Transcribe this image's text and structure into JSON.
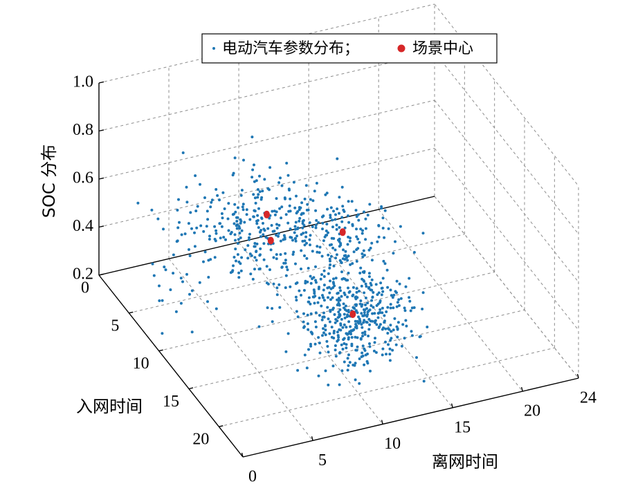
{
  "chart_data": {
    "type": "scatter",
    "subtype": "3d",
    "title": "",
    "xlabel": "离网时间",
    "ylabel": "入网时间",
    "zlabel": "SOC 分布",
    "xlim": [
      0,
      24
    ],
    "ylim": [
      0,
      24
    ],
    "zlim": [
      0.2,
      1.0
    ],
    "xticks": [
      "0",
      "5",
      "10",
      "15",
      "20",
      "24"
    ],
    "yticks": [
      "0",
      "5",
      "10",
      "15",
      "20"
    ],
    "zticks": [
      "0.2",
      "0.4",
      "0.6",
      "0.8",
      "1.0"
    ],
    "grid": true,
    "legend_position": "top-center",
    "legend": {
      "entries": [
        {
          "label": "电动汽车参数分布；",
          "marker": "dot",
          "color": "#1f77b4"
        },
        {
          "label": "场景中心",
          "marker": "filled-circle",
          "color": "#d62728"
        }
      ]
    },
    "series": [
      {
        "name": "电动汽车参数分布",
        "color": "#1f77b4",
        "clusters": [
          {
            "center": [
              2,
              10,
              0.6
            ],
            "spread": [
              2.0,
              1.6,
              0.16
            ],
            "count": 60
          },
          {
            "center": [
              8,
              10,
              0.55
            ],
            "spread": [
              2.2,
              2.4,
              0.1
            ],
            "count": 130
          },
          {
            "center": [
              9,
              7,
              0.55
            ],
            "spread": [
              2.0,
              2.2,
              0.08
            ],
            "count": 150
          },
          {
            "center": [
              14,
              8,
              0.44
            ],
            "spread": [
              1.6,
              1.6,
              0.06
            ],
            "count": 130
          },
          {
            "center": [
              10,
              19,
              0.5
            ],
            "spread": [
              1.8,
              1.8,
              0.1
            ],
            "count": 470
          }
        ]
      },
      {
        "name": "场景中心",
        "color": "#d62728",
        "points": [
          {
            "x": 8,
            "y": 10,
            "z": 0.55
          },
          {
            "x": 9,
            "y": 7,
            "z": 0.55
          },
          {
            "x": 14,
            "y": 8,
            "z": 0.44
          },
          {
            "x": 10,
            "y": 19,
            "z": 0.5
          }
        ]
      }
    ]
  }
}
